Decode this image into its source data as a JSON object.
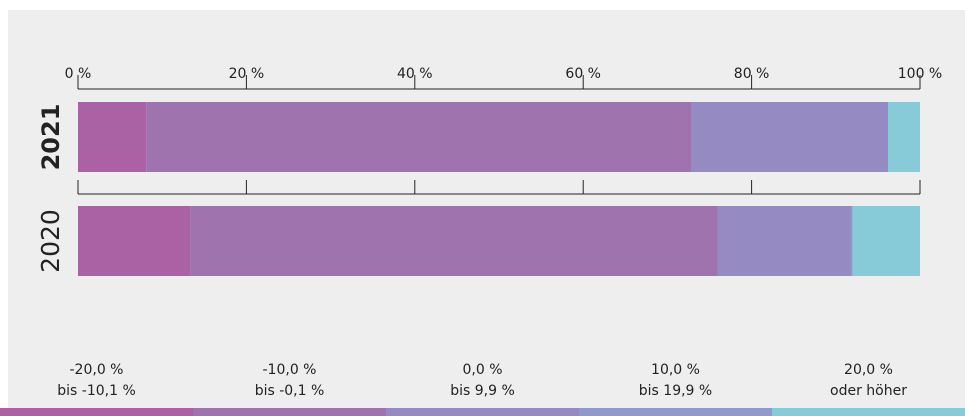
{
  "chart_data": {
    "type": "bar",
    "orientation": "horizontal",
    "stacked": true,
    "title": "",
    "xlabel": "",
    "ylabel": "",
    "xlim": [
      0,
      100
    ],
    "x_ticks": [
      "0 %",
      "20 %",
      "40 %",
      "60 %",
      "80 %",
      "100 %"
    ],
    "categories": [
      "2021",
      "2020"
    ],
    "bold_category": "2021",
    "series": [
      {
        "name": "-20,0 % bis -10,1 %",
        "label_line1": "-20,0 %",
        "label_line2": "bis -10,1 %",
        "color": "#ab62a4",
        "values": [
          8.1,
          13.4
        ]
      },
      {
        "name": "-10,0 % bis -0,1 %",
        "label_line1": "-10,0 %",
        "label_line2": "bis -0,1 %",
        "color": "#9f73ae",
        "values": [
          64.8,
          62.6
        ]
      },
      {
        "name": "0,0 % bis 9,9 %",
        "label_line1": "0,0 %",
        "label_line2": "bis 9,9 %",
        "color": "#958bc2",
        "values": [
          23.3,
          15.8
        ]
      },
      {
        "name": "10,0 % bis 19,9 %",
        "label_line1": "10,0 %",
        "label_line2": "bis 19,9 %",
        "color": "#9199cc",
        "values": [
          0.0,
          0.2
        ]
      },
      {
        "name": "20,0 % oder höher",
        "label_line1": "20,0 %",
        "label_line2": "oder höher",
        "color": "#87cbd8",
        "values": [
          3.8,
          8.0
        ]
      }
    ],
    "background_color": "#eeeeee",
    "axis_color": "#222222",
    "legend_position": "bottom",
    "grid": false
  }
}
